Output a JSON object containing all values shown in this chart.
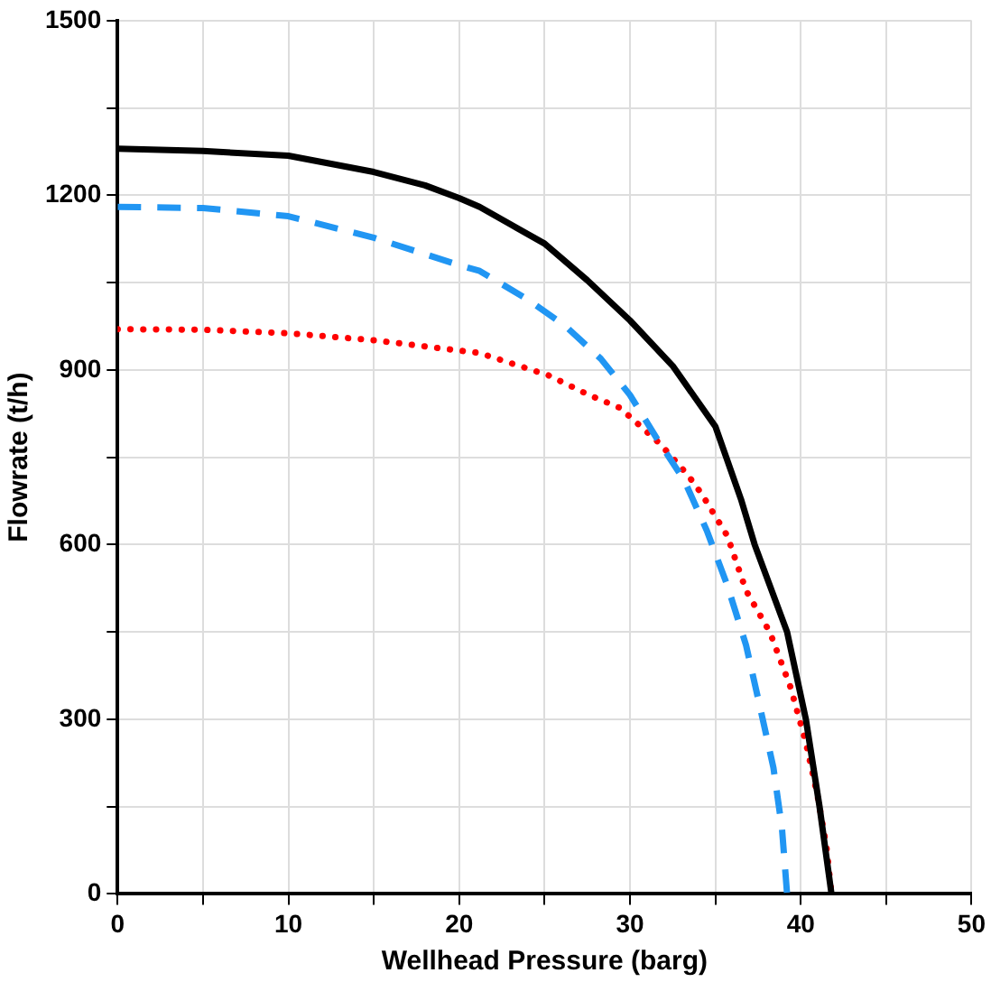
{
  "chart_data": {
    "type": "line",
    "xlabel": "Wellhead Pressure (barg)",
    "ylabel": "Flowrate (t/h)",
    "xlim": [
      0,
      50
    ],
    "ylim": [
      0,
      1500
    ],
    "xticks": [
      0,
      {
        "value": 5,
        "label": null
      },
      10,
      {
        "value": 15,
        "label": null
      },
      20,
      {
        "value": 25,
        "label": null
      },
      30,
      {
        "value": 35,
        "label": null
      },
      40,
      {
        "value": 45,
        "label": null
      },
      50
    ],
    "yticks": [
      0,
      {
        "value": 150,
        "label": null
      },
      300,
      {
        "value": 450,
        "label": null
      },
      600,
      {
        "value": 750,
        "label": null
      },
      900,
      {
        "value": 1050,
        "label": null
      },
      1200,
      {
        "value": 1350,
        "label": null
      },
      1500
    ],
    "grid": true,
    "legend": false,
    "marker": "none",
    "series": [
      {
        "color": "#000000",
        "line_style": "solid",
        "x": [
          0,
          5,
          10,
          15,
          18,
          20,
          21.2,
          23,
          25,
          27.5,
          30,
          32.5,
          35,
          36.5,
          37.3,
          39.2,
          40.3,
          41.1,
          41.8
        ],
        "values": [
          1280,
          1276,
          1268,
          1240,
          1217,
          1195,
          1180,
          1150,
          1117,
          1054,
          985,
          907,
          803,
          678,
          600,
          450,
          300,
          150,
          0
        ]
      },
      {
        "color": "#2196f3",
        "line_style": "dashed",
        "x": [
          0,
          5,
          10,
          15,
          20,
          21.2,
          23.9,
          26.2,
          28.3,
          30,
          31.6,
          33.2,
          34.5,
          35.7,
          36.8,
          37.6,
          38.4,
          38.9,
          39.2
        ],
        "values": [
          1180,
          1178,
          1164,
          1127,
          1080,
          1070,
          1023,
          976,
          919,
          857,
          781,
          709,
          624,
          530,
          427,
          323,
          217,
          113,
          0
        ]
      },
      {
        "color": "#ff0000",
        "line_style": "dotted",
        "x": [
          0,
          5,
          10,
          15,
          21.2,
          25.2,
          27.6,
          29.4,
          30.4,
          31.8,
          33.4,
          34.2,
          35.7,
          36.8,
          38.2,
          39.4,
          40.3,
          41,
          41.5,
          41.8
        ],
        "values": [
          970,
          969,
          963,
          951,
          929,
          891,
          857,
          835,
          809,
          772,
          719,
          687,
          615,
          521,
          449,
          355,
          260,
          166,
          82,
          0
        ]
      }
    ]
  }
}
